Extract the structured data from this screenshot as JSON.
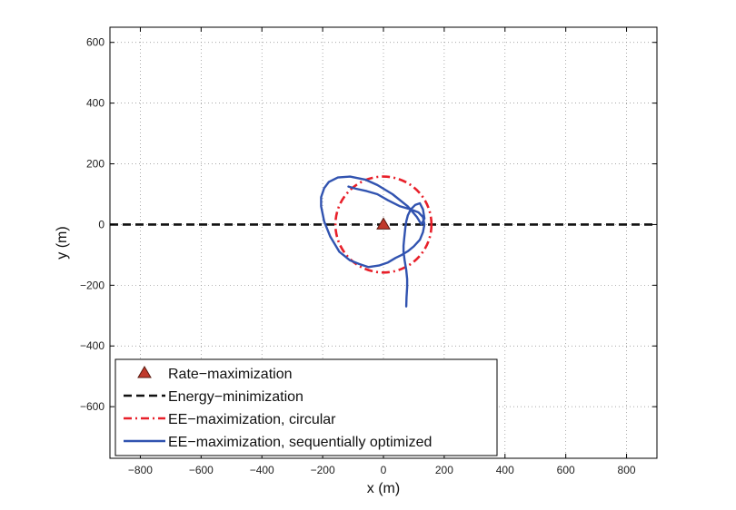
{
  "chart_data": {
    "type": "line",
    "xlabel": "x (m)",
    "ylabel": "y (m)",
    "xlim": [
      -900,
      900
    ],
    "ylim": [
      -770,
      650
    ],
    "xticks": [
      -800,
      -600,
      -400,
      -200,
      0,
      200,
      400,
      600,
      800
    ],
    "yticks": [
      -600,
      -400,
      -200,
      0,
      200,
      400,
      600
    ],
    "xtick_labels": [
      "−800",
      "−600",
      "−400",
      "−200",
      "0",
      "200",
      "400",
      "600",
      "800"
    ],
    "ytick_labels": [
      "−600",
      "−400",
      "−200",
      "0",
      "200",
      "400",
      "600"
    ],
    "grid": true,
    "legend_position": "bottom-left",
    "colors": {
      "rate": "#c0392b",
      "energy": "#111111",
      "circular": "#e8202a",
      "sequential": "#3153b0"
    },
    "series": [
      {
        "name": "Rate−maximization",
        "style": "triangle-marker",
        "x": [
          0
        ],
        "y": [
          0
        ]
      },
      {
        "name": "Energy−minimization",
        "style": "dashed",
        "x": [
          -900,
          900
        ],
        "y": [
          0,
          0
        ]
      },
      {
        "name": "EE−maximization, circular",
        "style": "dash-dot",
        "center": [
          0,
          0
        ],
        "radius": 158
      },
      {
        "name": "EE−maximization, sequentially optimized",
        "style": "solid",
        "x": [
          75,
          76,
          78,
          78,
          75,
          70,
          66,
          66,
          68,
          70,
          72,
          75,
          80,
          90,
          105,
          120,
          130,
          135,
          125,
          110,
          80,
          30,
          -20,
          -60,
          -110,
          -150,
          -180,
          -195,
          -205,
          -205,
          -195,
          -175,
          -145,
          -110,
          -80,
          -50,
          -15,
          15,
          40,
          60,
          80,
          100,
          120,
          130,
          135,
          130,
          115,
          90,
          55,
          15,
          -20,
          -55,
          -90,
          -115
        ],
        "y": [
          -270,
          -240,
          -205,
          -180,
          -150,
          -120,
          -90,
          -70,
          -50,
          -30,
          -10,
          10,
          30,
          50,
          65,
          70,
          50,
          20,
          0,
          25,
          60,
          100,
          130,
          148,
          158,
          155,
          140,
          120,
          90,
          60,
          10,
          -40,
          -90,
          -118,
          -130,
          -140,
          -135,
          -125,
          -110,
          -100,
          -88,
          -72,
          -50,
          -25,
          0,
          25,
          40,
          50,
          60,
          80,
          100,
          110,
          118,
          125
        ]
      }
    ]
  }
}
